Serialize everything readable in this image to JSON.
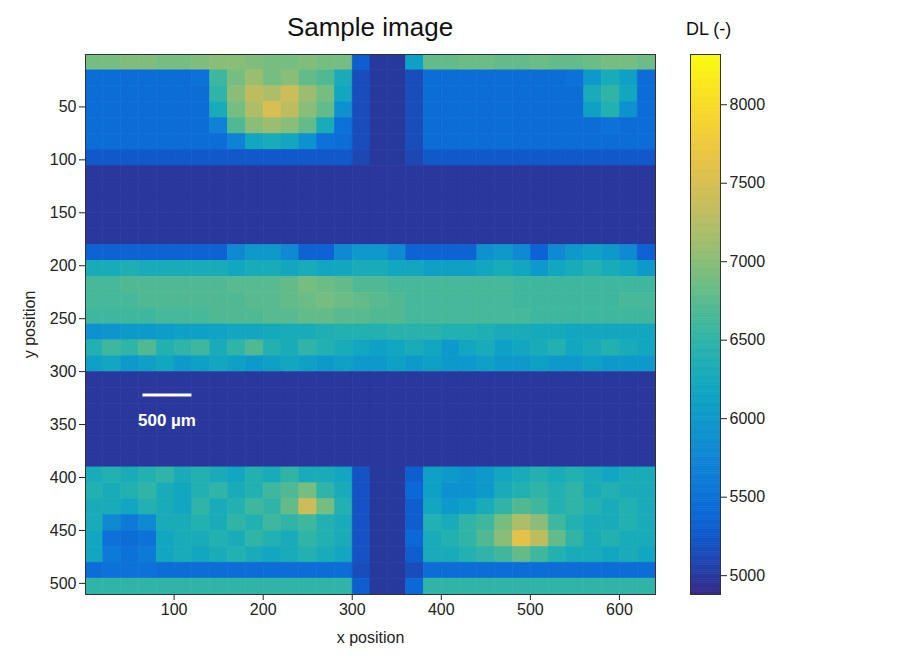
{
  "chart_data": {
    "type": "heatmap",
    "title": "Sample image",
    "xlabel": "x position",
    "ylabel": "y position",
    "xlim": [
      0.5,
      640.5
    ],
    "ylim": [
      0.5,
      510.5
    ],
    "xticks": [
      100,
      200,
      300,
      400,
      500,
      600
    ],
    "yticks": [
      50,
      100,
      150,
      200,
      250,
      300,
      350,
      400,
      450,
      500
    ],
    "x_edges": [
      0.5,
      20.5,
      40.5,
      60.5,
      80.5,
      100.5,
      120.5,
      140.5,
      160.5,
      180.5,
      200.5,
      220.5,
      240.5,
      260.5,
      280.5,
      300.5,
      320.5,
      340.5,
      360.5,
      380.5,
      400.5,
      420.5,
      440.5,
      460.5,
      480.5,
      500.5,
      520.5,
      540.5,
      560.5,
      580.5,
      600.5,
      620.5,
      640.5
    ],
    "y_edges": [
      0.5,
      15.5,
      30.5,
      45.5,
      60.5,
      75.5,
      90.5,
      105.5,
      120.5,
      135.5,
      150.5,
      165.5,
      180.5,
      195.5,
      210.5,
      225.5,
      240.5,
      255.5,
      270.5,
      285.5,
      300.5,
      315.5,
      330.5,
      345.5,
      360.5,
      375.5,
      390.5,
      405.5,
      420.5,
      435.5,
      450.5,
      465.5,
      480.5,
      495.5,
      510.5
    ],
    "values": [
      [
        6900,
        6900,
        6950,
        6950,
        6900,
        6900,
        6950,
        7000,
        7000,
        6950,
        6900,
        6900,
        6950,
        6900,
        6900,
        5300,
        4990,
        4990,
        6100,
        6800,
        6800,
        6850,
        6850,
        6800,
        6800,
        6850,
        6800,
        6800,
        6850,
        6900,
        6900,
        6850
      ],
      [
        5450,
        5450,
        5450,
        5450,
        5450,
        5450,
        5500,
        6600,
        6900,
        7100,
        6900,
        7000,
        6800,
        6700,
        6300,
        5150,
        4990,
        4990,
        5150,
        5450,
        5450,
        5450,
        5450,
        5450,
        5450,
        5450,
        5450,
        5500,
        6000,
        6300,
        6100,
        5450
      ],
      [
        5450,
        5450,
        5450,
        5450,
        5450,
        5450,
        5450,
        6500,
        7000,
        7300,
        7200,
        7400,
        7100,
        6900,
        6200,
        5150,
        4990,
        4990,
        5150,
        5450,
        5450,
        5450,
        5450,
        5450,
        5450,
        5450,
        5450,
        5450,
        6300,
        6500,
        6200,
        5450
      ],
      [
        5450,
        5450,
        5450,
        5450,
        5450,
        5450,
        5450,
        6300,
        6900,
        7200,
        7500,
        7300,
        7000,
        6800,
        5900,
        5150,
        4990,
        4990,
        5150,
        5450,
        5450,
        5450,
        5450,
        5450,
        5450,
        5450,
        5450,
        5450,
        6100,
        6400,
        5900,
        5450
      ],
      [
        5450,
        5450,
        5450,
        5450,
        5450,
        5450,
        5450,
        5700,
        6700,
        7000,
        7100,
        7000,
        6800,
        6300,
        5500,
        5150,
        4990,
        4990,
        5150,
        5450,
        5450,
        5450,
        5450,
        5450,
        5450,
        5450,
        5450,
        5450,
        5450,
        5500,
        5450,
        5450
      ],
      [
        5450,
        5450,
        5450,
        5450,
        5450,
        5450,
        5450,
        5450,
        5700,
        6200,
        6300,
        6200,
        5900,
        5500,
        5450,
        5150,
        4990,
        4990,
        5150,
        5450,
        5450,
        5450,
        5450,
        5450,
        5450,
        5450,
        5450,
        5450,
        5450,
        5450,
        5450,
        5450
      ],
      [
        5250,
        5250,
        5250,
        5250,
        5250,
        5250,
        5250,
        5250,
        5250,
        5250,
        5250,
        5250,
        5250,
        5250,
        5250,
        5100,
        4990,
        4990,
        5100,
        5250,
        5250,
        5250,
        5250,
        5250,
        5250,
        5250,
        5250,
        5250,
        5250,
        5250,
        5250,
        5250
      ],
      [
        4980,
        4980,
        4980,
        4980,
        4980,
        4980,
        4980,
        4980,
        4980,
        4980,
        4980,
        4980,
        4980,
        4980,
        4980,
        4980,
        4980,
        4980,
        4980,
        4980,
        4980,
        4980,
        4980,
        4980,
        4980,
        4980,
        4980,
        4980,
        4980,
        4980,
        4980,
        4980
      ],
      [
        4980,
        4980,
        4980,
        4980,
        4980,
        4980,
        4980,
        4980,
        4980,
        4980,
        4980,
        4980,
        4980,
        4980,
        4980,
        4980,
        4980,
        4980,
        4980,
        4980,
        4980,
        4980,
        4980,
        4980,
        4980,
        4980,
        4980,
        4980,
        4980,
        4980,
        4980,
        4980
      ],
      [
        4980,
        4980,
        4980,
        4980,
        4980,
        4980,
        4980,
        4980,
        4980,
        4980,
        4980,
        4980,
        4980,
        4980,
        4980,
        4980,
        4980,
        4980,
        4980,
        4980,
        4980,
        4980,
        4980,
        4980,
        4980,
        4980,
        4980,
        4980,
        4980,
        4980,
        4980,
        4980
      ],
      [
        4980,
        4980,
        4980,
        4980,
        4980,
        4980,
        4980,
        4980,
        4980,
        4980,
        4980,
        4980,
        4980,
        4980,
        4980,
        4980,
        4980,
        4980,
        4980,
        4980,
        4980,
        4980,
        4980,
        4980,
        4980,
        4980,
        4980,
        4980,
        4980,
        4980,
        4980,
        4980
      ],
      [
        4980,
        4980,
        4980,
        4980,
        4980,
        4980,
        4980,
        4980,
        4980,
        4980,
        4980,
        4980,
        4980,
        4980,
        4980,
        4980,
        4980,
        4980,
        4980,
        4980,
        4980,
        4980,
        4980,
        4980,
        4980,
        4980,
        4980,
        4980,
        4980,
        4980,
        4980,
        4980
      ],
      [
        5350,
        5350,
        5350,
        5350,
        5350,
        5350,
        5350,
        5350,
        5800,
        6000,
        6000,
        5800,
        5350,
        5350,
        5800,
        6000,
        6000,
        5800,
        5350,
        5350,
        5350,
        5350,
        5900,
        6000,
        5800,
        5350,
        5800,
        6000,
        6100,
        6000,
        5800,
        5350
      ],
      [
        6300,
        6300,
        6350,
        6300,
        6300,
        6300,
        6300,
        6300,
        6200,
        6300,
        6300,
        6200,
        6300,
        6200,
        6200,
        6300,
        6300,
        6200,
        6200,
        6100,
        6100,
        6100,
        6200,
        6300,
        6200,
        6000,
        6200,
        6300,
        6400,
        6300,
        6200,
        6000
      ],
      [
        6650,
        6650,
        6700,
        6700,
        6700,
        6700,
        6700,
        6700,
        6750,
        6750,
        6750,
        6800,
        6900,
        6850,
        6800,
        6700,
        6700,
        6650,
        6650,
        6650,
        6650,
        6650,
        6650,
        6650,
        6600,
        6600,
        6600,
        6600,
        6600,
        6600,
        6600,
        6600
      ],
      [
        6650,
        6650,
        6650,
        6700,
        6700,
        6700,
        6700,
        6700,
        6700,
        6750,
        6750,
        6800,
        6850,
        6900,
        6850,
        6800,
        6750,
        6700,
        6650,
        6650,
        6650,
        6650,
        6650,
        6650,
        6600,
        6600,
        6600,
        6600,
        6600,
        6600,
        6650,
        6650
      ],
      [
        6600,
        6600,
        6600,
        6600,
        6650,
        6650,
        6650,
        6700,
        6700,
        6700,
        6750,
        6750,
        6800,
        6800,
        6750,
        6750,
        6700,
        6700,
        6650,
        6650,
        6650,
        6650,
        6650,
        6650,
        6650,
        6600,
        6600,
        6600,
        6600,
        6600,
        6600,
        6600
      ],
      [
        5900,
        5950,
        6000,
        6000,
        6050,
        6100,
        6100,
        6150,
        6200,
        6200,
        6250,
        6300,
        6300,
        6350,
        6400,
        6400,
        6400,
        6450,
        6450,
        6450,
        6400,
        6400,
        6350,
        6300,
        6300,
        6250,
        6250,
        6200,
        6200,
        6200,
        6200,
        6200
      ],
      [
        6400,
        6600,
        6500,
        6700,
        6400,
        6500,
        6600,
        6300,
        6500,
        6700,
        6400,
        6300,
        6500,
        6400,
        6300,
        6200,
        6100,
        6200,
        6300,
        6200,
        6000,
        6200,
        6300,
        6100,
        6200,
        6300,
        6400,
        6200,
        6300,
        6400,
        6300,
        6200
      ],
      [
        6100,
        6200,
        6000,
        6100,
        6200,
        6000,
        6100,
        6200,
        6100,
        6000,
        6100,
        6200,
        6100,
        6000,
        6100,
        6000,
        6000,
        6100,
        6000,
        6100,
        6000,
        6000,
        6100,
        6000,
        6000,
        6100,
        6000,
        6000,
        6100,
        6000,
        6000,
        6000
      ],
      [
        4980,
        4980,
        4980,
        4980,
        4980,
        4980,
        4980,
        4980,
        4980,
        4980,
        4980,
        4980,
        4980,
        4980,
        4980,
        4980,
        4980,
        4980,
        4980,
        4980,
        4980,
        4980,
        4980,
        4980,
        4980,
        4980,
        4980,
        4980,
        4980,
        4980,
        4980,
        4980
      ],
      [
        4980,
        4980,
        4980,
        4980,
        4980,
        4980,
        4980,
        4980,
        4980,
        4980,
        4980,
        4980,
        4980,
        4980,
        4980,
        4980,
        4980,
        4980,
        4980,
        4980,
        4980,
        4980,
        4980,
        4980,
        4980,
        4980,
        4980,
        4980,
        4980,
        4980,
        4980,
        4980
      ],
      [
        4980,
        4980,
        4980,
        4980,
        4980,
        4980,
        4980,
        4980,
        4980,
        4980,
        4980,
        4980,
        4980,
        4980,
        4980,
        4980,
        4980,
        4980,
        4980,
        4980,
        4980,
        4980,
        4980,
        4980,
        4980,
        4980,
        4980,
        4980,
        4980,
        4980,
        4980,
        4980
      ],
      [
        4980,
        4980,
        4980,
        4980,
        4980,
        4980,
        4980,
        4980,
        4980,
        4980,
        4980,
        4980,
        4980,
        4980,
        4980,
        4980,
        4980,
        4980,
        4980,
        4980,
        4980,
        4980,
        4980,
        4980,
        4980,
        4980,
        4980,
        4980,
        4980,
        4980,
        4980,
        4980
      ],
      [
        4980,
        4980,
        4980,
        4980,
        4980,
        4980,
        4980,
        4980,
        4980,
        4980,
        4980,
        4980,
        4980,
        4980,
        4980,
        4980,
        4980,
        4980,
        4980,
        4980,
        4980,
        4980,
        4980,
        4980,
        4980,
        4980,
        4980,
        4980,
        4980,
        4980,
        4980,
        4980
      ],
      [
        4980,
        4980,
        4980,
        4980,
        4980,
        4980,
        4980,
        4980,
        4980,
        4980,
        4980,
        4980,
        4980,
        4980,
        4980,
        4980,
        4980,
        4980,
        4980,
        4980,
        4980,
        4980,
        4980,
        4980,
        4980,
        4980,
        4980,
        4980,
        4980,
        4980,
        4980,
        4980
      ],
      [
        6300,
        6400,
        6300,
        6400,
        6500,
        6300,
        6400,
        6300,
        6200,
        6400,
        6300,
        6500,
        6300,
        6300,
        6200,
        5200,
        4990,
        4990,
        5300,
        6100,
        6000,
        5900,
        6000,
        6200,
        6300,
        6400,
        6300,
        6400,
        6300,
        6200,
        6300,
        6300
      ],
      [
        6400,
        6300,
        6400,
        6500,
        6300,
        6200,
        6400,
        6500,
        6300,
        6400,
        6600,
        6700,
        6900,
        6500,
        6300,
        5200,
        4990,
        4990,
        5400,
        6100,
        5900,
        5900,
        6000,
        6300,
        6400,
        6500,
        6400,
        6500,
        6300,
        6400,
        6300,
        6300
      ],
      [
        6300,
        6300,
        6200,
        6400,
        6300,
        6200,
        6500,
        6300,
        6400,
        6600,
        6500,
        6800,
        7400,
        6900,
        6400,
        5200,
        4990,
        4990,
        5300,
        6200,
        6000,
        6100,
        6300,
        6500,
        6700,
        6600,
        6400,
        6500,
        6400,
        6300,
        6400,
        6300
      ],
      [
        6300,
        5800,
        5600,
        5800,
        6300,
        6300,
        6400,
        6300,
        6500,
        6400,
        6600,
        6500,
        6600,
        6400,
        6300,
        5200,
        4990,
        4990,
        5300,
        6400,
        6300,
        6500,
        6600,
        6900,
        7200,
        7000,
        6600,
        6400,
        6300,
        6300,
        6400,
        6300
      ],
      [
        6200,
        5500,
        5450,
        5500,
        6200,
        6300,
        6300,
        6400,
        6300,
        6500,
        6400,
        6300,
        6500,
        6400,
        6300,
        5200,
        4990,
        4990,
        5400,
        6300,
        6400,
        6500,
        6700,
        7000,
        7600,
        7300,
        6800,
        6500,
        6300,
        6400,
        6300,
        6300
      ],
      [
        6200,
        5600,
        5500,
        5600,
        6200,
        6300,
        6200,
        6300,
        6400,
        6300,
        6200,
        6300,
        6400,
        6300,
        6200,
        5200,
        4990,
        4990,
        5300,
        6300,
        6300,
        6400,
        6500,
        6600,
        6800,
        6600,
        6400,
        6300,
        6300,
        6200,
        6300,
        6200
      ],
      [
        5450,
        5500,
        5500,
        5500,
        5450,
        5450,
        5450,
        5450,
        5450,
        5450,
        5450,
        5450,
        5450,
        5450,
        5450,
        5150,
        4990,
        4990,
        5150,
        5450,
        5450,
        5450,
        5450,
        5450,
        5450,
        5450,
        5450,
        5450,
        5450,
        5450,
        5450,
        5450
      ],
      [
        6500,
        6500,
        6500,
        6500,
        6500,
        6500,
        6500,
        6500,
        6500,
        6500,
        6500,
        6500,
        6500,
        6500,
        6500,
        5300,
        4990,
        4990,
        5400,
        6500,
        6500,
        6500,
        6500,
        6500,
        6500,
        6500,
        6500,
        6500,
        6500,
        6500,
        6500,
        6500
      ]
    ],
    "colorbar": {
      "label": "DL (-)",
      "range": [
        4880,
        8320
      ],
      "ticks": [
        5000,
        5500,
        6000,
        6500,
        7000,
        7500,
        8000
      ]
    },
    "annotations": [
      {
        "text": "500 µm"
      }
    ]
  }
}
